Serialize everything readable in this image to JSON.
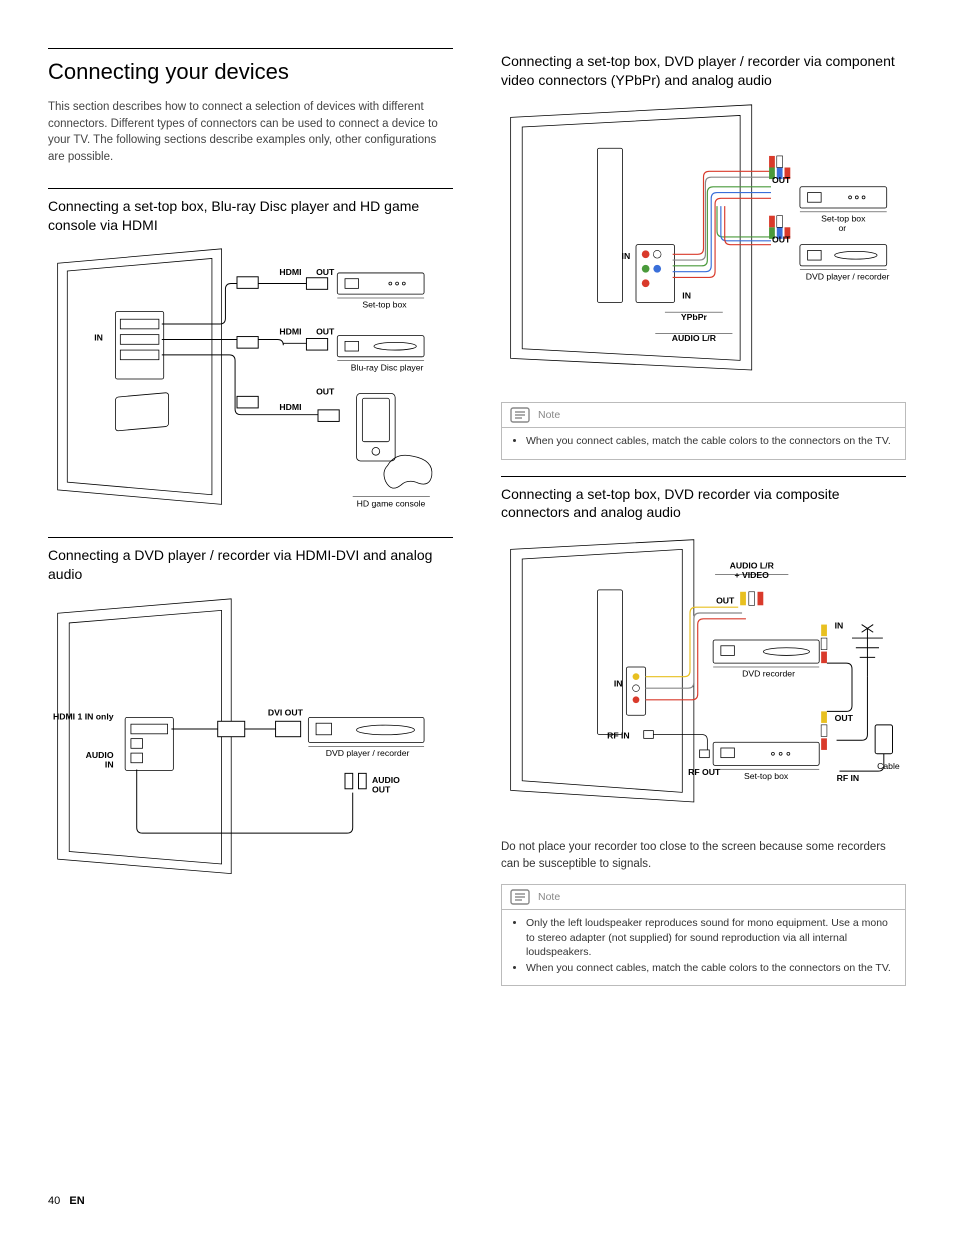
{
  "page": {
    "number": "40",
    "lang": "EN"
  },
  "left": {
    "title": "Connecting your devices",
    "intro": "This section describes how to connect a selection of devices with different connectors. Different types of connectors can be used to connect a device to your TV. The following sections describe examples only, other configurations are possible.",
    "sec1_title": "Connecting a set-top box, Blu-ray Disc player and HD game console via HDMI",
    "sec2_title": "Connecting a DVD player / recorder via HDMI-DVI and analog audio",
    "diag1": {
      "hdmi": "HDMI",
      "out": "OUT",
      "in": "IN",
      "settop": "Set-top box",
      "bluray": "Blu-ray Disc player",
      "console": "HD game console"
    },
    "diag2": {
      "hdmi1": "HDMI 1 IN only",
      "dviout": "DVI OUT",
      "dvd": "DVD player / recorder",
      "audioin": "AUDIO\nIN",
      "audioout": "AUDIO\nOUT"
    }
  },
  "right": {
    "sec1_title": "Connecting a set-top box, DVD player / recorder via component video connectors (YPbPr) and analog audio",
    "sec2_title": "Connecting a set-top box, DVD recorder via composite connectors and analog audio",
    "diag1": {
      "out": "OUT",
      "in": "IN",
      "settop": "Set-top box",
      "or": "or",
      "dvd": "DVD player / recorder",
      "ypbpr": "YPbPr",
      "audiolr": "AUDIO L/R"
    },
    "note1_label": "Note",
    "note1_item1": "When you connect cables, match the cable colors to the connectors on the TV.",
    "diag2": {
      "audiolrvideo": "AUDIO L/R\n+ VIDEO",
      "out": "OUT",
      "in": "IN",
      "dvdrec": "DVD recorder",
      "rfin": "RF IN",
      "rfout": "RF OUT",
      "settop": "Set-top box",
      "cable": "Cable"
    },
    "caption2": "Do not place your recorder too close to the screen because some recorders can be susceptible to signals.",
    "note2_label": "Note",
    "note2_item1": "Only the left loudspeaker reproduces sound for mono equipment. Use a mono to stereo adapter (not supplied) for sound reproduction via all internal loudspeakers.",
    "note2_item2": "When you connect cables, match the cable colors to the connectors on the TV."
  },
  "colors": {
    "text": "#000000",
    "muted": "#888888",
    "border": "#bbbbbb",
    "line": "#000000",
    "red": "#d93a2b",
    "green": "#4a9a3b",
    "blue": "#3a6fd9",
    "yellow": "#e8c020",
    "white": "#ffffff"
  }
}
